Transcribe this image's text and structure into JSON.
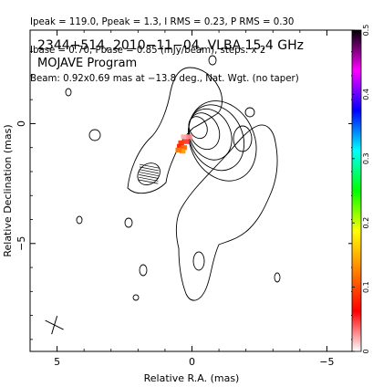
{
  "header": {
    "line1": "Ipeak = 119.0, Ppeak = 1.3, I RMS = 0.23, P RMS = 0.30",
    "line2": "Ibase = 0.70, Pbase = 0.85 (mJy/beam), steps: x 2",
    "line3": "Beam: 0.92x0.69 mas at −13.8 deg., Nat. Wgt. (no taper)"
  },
  "chart_data": {
    "type": "contour",
    "title": "2344+514, 2010−11−04, VLBA 15.4 GHz",
    "subtitle": "MOJAVE Program",
    "xlabel": "Relative R.A. (mas)",
    "ylabel": "Relative Declination (mas)",
    "xlim": [
      6.0,
      -6.0
    ],
    "ylim": [
      -9.5,
      3.9
    ],
    "x_ticks": [
      5,
      0,
      -5
    ],
    "x_tick_labels": [
      "5",
      "0",
      "−5"
    ],
    "y_ticks": [
      0,
      -5
    ],
    "y_tick_labels": [
      "0",
      "−5"
    ],
    "colorbar": {
      "range": [
        0,
        0.5
      ],
      "ticks": [
        0,
        0.1,
        0.2,
        0.3,
        0.4,
        0.5
      ],
      "tick_labels": [
        "0",
        "0.1",
        "0.2",
        "0.3",
        "0.4",
        "0.5"
      ],
      "colors": [
        "#ffffff",
        "#ff0000",
        "#ff8000",
        "#ffff00",
        "#00ff00",
        "#00ffff",
        "#0000ff",
        "#ff00ff",
        "#000000"
      ]
    },
    "core": {
      "x": 0.0,
      "y": 0.0
    },
    "core_contours": [
      {
        "dx": 0.25,
        "dy": 0.18,
        "ry": 0.45,
        "rot": -25
      },
      {
        "dx": 0.5,
        "dy": 0.35,
        "ry": 0.75,
        "rot": -25
      },
      {
        "dx": 0.75,
        "dy": 0.5,
        "ry": 1.05,
        "rot": -25
      },
      {
        "dx": 1.0,
        "dy": 0.65,
        "ry": 1.35,
        "rot": -25
      },
      {
        "dx": 1.25,
        "dy": 0.8,
        "ry": 1.65,
        "rot": -25
      }
    ],
    "polarization_pixels": [
      {
        "x": 0.3,
        "y": -0.55,
        "v": 0.02
      },
      {
        "x": 0.1,
        "y": -0.55,
        "v": 0.03
      },
      {
        "x": 0.2,
        "y": -0.75,
        "v": 0.05
      },
      {
        "x": 0.4,
        "y": -0.8,
        "v": 0.09
      },
      {
        "x": 0.45,
        "y": -0.95,
        "v": 0.08
      },
      {
        "x": 0.3,
        "y": -1.0,
        "v": 0.11
      },
      {
        "x": 0.35,
        "y": -1.15,
        "v": 0.14
      },
      {
        "x": 0.5,
        "y": -1.1,
        "v": 0.12
      }
    ],
    "beam": {
      "major_mas": 0.92,
      "minor_mas": 0.69,
      "pa_deg": -13.8,
      "x": 1.6,
      "y": -2.1
    },
    "cross": {
      "x": 5.1,
      "y": -8.4
    }
  }
}
